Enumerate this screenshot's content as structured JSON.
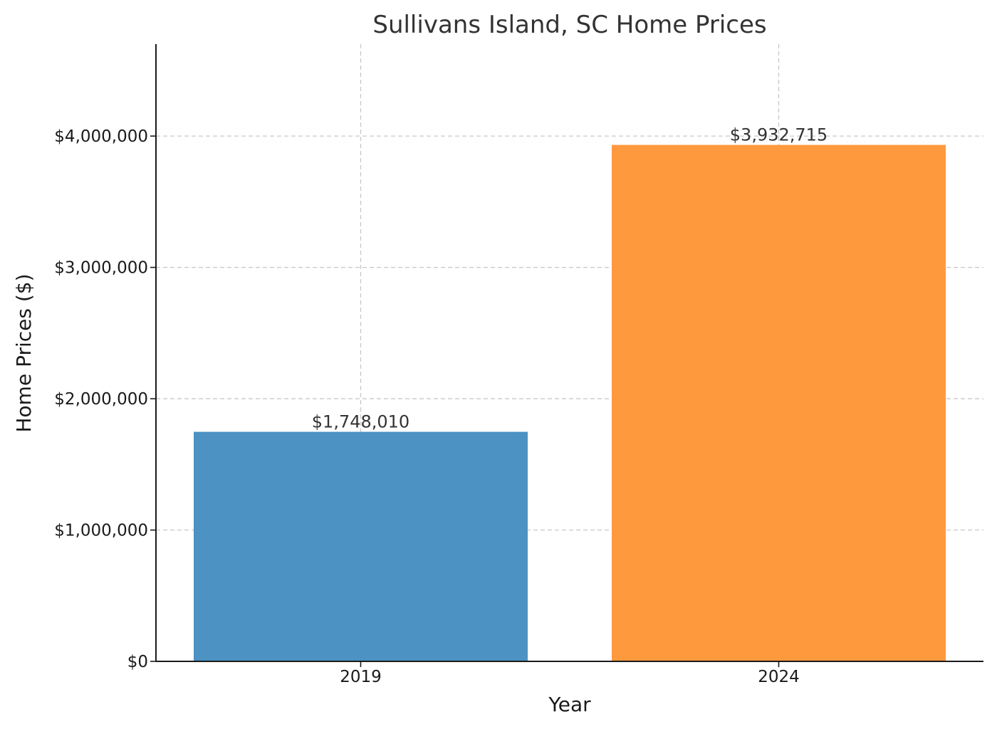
{
  "chart_data": {
    "type": "bar",
    "title": "Sullivans Island, SC Home Prices",
    "xlabel": "Year",
    "ylabel": "Home Prices ($)",
    "categories": [
      "2019",
      "2024"
    ],
    "values": [
      1748010,
      3932715
    ],
    "value_labels": [
      "$1,748,010",
      "$3,932,715"
    ],
    "colors": [
      "#4c92c3",
      "#ff993e"
    ],
    "ylim": [
      0,
      4700000
    ],
    "yticks": [
      0,
      1000000,
      2000000,
      3000000,
      4000000
    ],
    "ytick_labels": [
      "$0",
      "$1,000,000",
      "$2,000,000",
      "$3,000,000",
      "$4,000,000"
    ],
    "grid": true
  }
}
